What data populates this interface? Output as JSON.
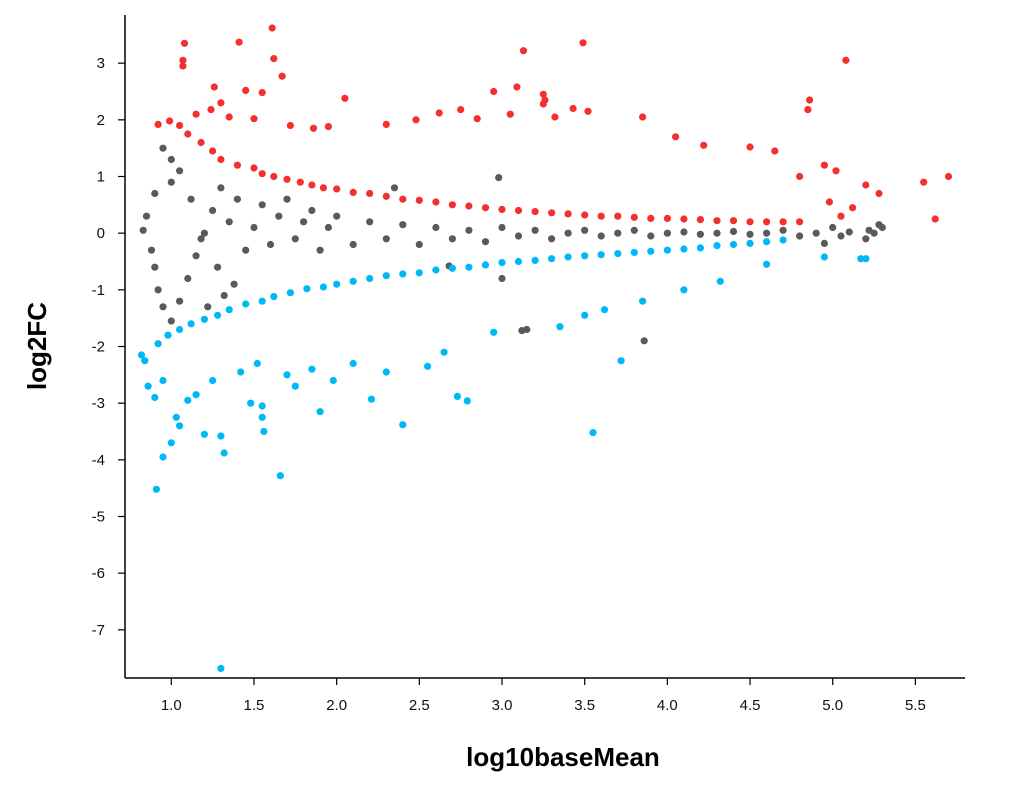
{
  "chart_data": {
    "type": "scatter",
    "title": "",
    "xlabel": "log10baseMean",
    "ylabel": "log2FC",
    "xlim": [
      0.72,
      5.8
    ],
    "ylim": [
      -7.85,
      3.85
    ],
    "x_ticks": [
      1.0,
      1.5,
      2.0,
      2.5,
      3.0,
      3.5,
      4.0,
      4.5,
      5.0,
      5.5
    ],
    "x_tick_labels": [
      "1.0",
      "1.5",
      "2.0",
      "2.5",
      "3.0",
      "3.5",
      "4.0",
      "4.5",
      "5.0",
      "5.5"
    ],
    "y_ticks": [
      3,
      2,
      1,
      0,
      -1,
      -2,
      -3,
      -4,
      -5,
      -6,
      -7
    ],
    "y_tick_labels": [
      "3",
      "2",
      "1",
      "0",
      "-1",
      "-2",
      "-3",
      "-4",
      "-5",
      "-6",
      "-7"
    ],
    "grid": false,
    "legend": "none",
    "colors": {
      "up": "#f23030",
      "down": "#00b8f5",
      "not_significant": "#5a5a5a"
    },
    "series": [
      {
        "group": "up",
        "points": [
          [
            1.08,
            3.35
          ],
          [
            1.07,
            3.05
          ],
          [
            1.07,
            2.95
          ],
          [
            1.41,
            3.37
          ],
          [
            1.61,
            3.62
          ],
          [
            1.62,
            3.08
          ],
          [
            1.67,
            2.77
          ],
          [
            3.13,
            3.22
          ],
          [
            3.49,
            3.36
          ],
          [
            5.08,
            3.05
          ],
          [
            1.26,
            2.58
          ],
          [
            1.3,
            2.3
          ],
          [
            1.45,
            2.52
          ],
          [
            1.55,
            2.48
          ],
          [
            2.05,
            2.38
          ],
          [
            2.95,
            2.5
          ],
          [
            3.09,
            2.58
          ],
          [
            3.25,
            2.28
          ],
          [
            3.25,
            2.45
          ],
          [
            3.43,
            2.2
          ],
          [
            3.26,
            2.35
          ],
          [
            4.86,
            2.35
          ],
          [
            4.85,
            2.18
          ],
          [
            0.92,
            1.92
          ],
          [
            0.99,
            1.98
          ],
          [
            1.15,
            2.1
          ],
          [
            1.24,
            2.18
          ],
          [
            1.35,
            2.05
          ],
          [
            1.5,
            2.02
          ],
          [
            1.72,
            1.9
          ],
          [
            1.86,
            1.85
          ],
          [
            1.95,
            1.88
          ],
          [
            2.3,
            1.92
          ],
          [
            2.48,
            2.0
          ],
          [
            2.62,
            2.12
          ],
          [
            2.75,
            2.18
          ],
          [
            2.85,
            2.02
          ],
          [
            3.05,
            2.1
          ],
          [
            3.32,
            2.05
          ],
          [
            3.52,
            2.15
          ],
          [
            3.85,
            2.05
          ],
          [
            4.05,
            1.7
          ],
          [
            4.22,
            1.55
          ],
          [
            4.5,
            1.52
          ],
          [
            4.65,
            1.45
          ],
          [
            4.95,
            1.2
          ],
          [
            5.02,
            1.1
          ],
          [
            4.8,
            1.0
          ],
          [
            5.2,
            0.85
          ],
          [
            5.28,
            0.7
          ],
          [
            5.55,
            0.9
          ],
          [
            5.7,
            1.0
          ],
          [
            5.62,
            0.25
          ],
          [
            5.05,
            0.3
          ],
          [
            4.98,
            0.55
          ],
          [
            5.12,
            0.45
          ],
          [
            1.05,
            1.9
          ],
          [
            1.1,
            1.75
          ],
          [
            1.18,
            1.6
          ],
          [
            1.25,
            1.45
          ],
          [
            1.3,
            1.3
          ],
          [
            1.4,
            1.2
          ],
          [
            1.5,
            1.15
          ],
          [
            1.55,
            1.05
          ],
          [
            1.62,
            1.0
          ],
          [
            1.7,
            0.95
          ],
          [
            1.78,
            0.9
          ],
          [
            1.85,
            0.85
          ],
          [
            1.92,
            0.8
          ],
          [
            2.0,
            0.78
          ],
          [
            2.1,
            0.72
          ],
          [
            2.2,
            0.7
          ],
          [
            2.3,
            0.65
          ],
          [
            2.4,
            0.6
          ],
          [
            2.5,
            0.58
          ],
          [
            2.6,
            0.55
          ],
          [
            2.7,
            0.5
          ],
          [
            2.8,
            0.48
          ],
          [
            2.9,
            0.45
          ],
          [
            3.0,
            0.42
          ],
          [
            3.1,
            0.4
          ],
          [
            3.2,
            0.38
          ],
          [
            3.3,
            0.36
          ],
          [
            3.4,
            0.34
          ],
          [
            3.5,
            0.32
          ],
          [
            3.6,
            0.3
          ],
          [
            3.7,
            0.3
          ],
          [
            3.8,
            0.28
          ],
          [
            3.9,
            0.26
          ],
          [
            4.0,
            0.26
          ],
          [
            4.1,
            0.25
          ],
          [
            4.2,
            0.24
          ],
          [
            4.3,
            0.22
          ],
          [
            4.4,
            0.22
          ],
          [
            4.5,
            0.2
          ],
          [
            4.6,
            0.2
          ],
          [
            4.7,
            0.2
          ],
          [
            4.8,
            0.2
          ]
        ]
      },
      {
        "group": "down",
        "points": [
          [
            1.3,
            -7.68
          ],
          [
            0.91,
            -4.52
          ],
          [
            0.95,
            -3.95
          ],
          [
            1.0,
            -3.7
          ],
          [
            1.66,
            -4.28
          ],
          [
            1.05,
            -3.4
          ],
          [
            1.2,
            -3.55
          ],
          [
            1.3,
            -3.58
          ],
          [
            1.32,
            -3.88
          ],
          [
            1.48,
            -3.0
          ],
          [
            1.55,
            -3.05
          ],
          [
            1.55,
            -3.25
          ],
          [
            1.56,
            -3.5
          ],
          [
            1.9,
            -3.15
          ],
          [
            2.21,
            -2.93
          ],
          [
            2.4,
            -3.38
          ],
          [
            2.73,
            -2.88
          ],
          [
            2.79,
            -2.96
          ],
          [
            3.55,
            -3.52
          ],
          [
            3.72,
            -2.25
          ],
          [
            0.82,
            -2.15
          ],
          [
            0.84,
            -2.25
          ],
          [
            0.86,
            -2.7
          ],
          [
            0.9,
            -2.9
          ],
          [
            0.95,
            -2.6
          ],
          [
            1.03,
            -3.25
          ],
          [
            1.1,
            -2.95
          ],
          [
            1.15,
            -2.85
          ],
          [
            1.25,
            -2.6
          ],
          [
            1.42,
            -2.45
          ],
          [
            1.52,
            -2.3
          ],
          [
            1.7,
            -2.5
          ],
          [
            1.75,
            -2.7
          ],
          [
            1.85,
            -2.4
          ],
          [
            1.98,
            -2.6
          ],
          [
            2.1,
            -2.3
          ],
          [
            2.3,
            -2.45
          ],
          [
            2.55,
            -2.35
          ],
          [
            2.65,
            -2.1
          ],
          [
            2.95,
            -1.75
          ],
          [
            3.35,
            -1.65
          ],
          [
            3.5,
            -1.45
          ],
          [
            3.62,
            -1.35
          ],
          [
            3.85,
            -1.2
          ],
          [
            4.1,
            -1.0
          ],
          [
            4.32,
            -0.85
          ],
          [
            4.6,
            -0.55
          ],
          [
            4.95,
            -0.42
          ],
          [
            5.17,
            -0.45
          ],
          [
            5.2,
            -0.45
          ],
          [
            0.92,
            -1.95
          ],
          [
            0.98,
            -1.8
          ],
          [
            1.05,
            -1.7
          ],
          [
            1.12,
            -1.6
          ],
          [
            1.2,
            -1.52
          ],
          [
            1.28,
            -1.45
          ],
          [
            1.35,
            -1.35
          ],
          [
            1.45,
            -1.25
          ],
          [
            1.55,
            -1.2
          ],
          [
            1.62,
            -1.12
          ],
          [
            1.72,
            -1.05
          ],
          [
            1.82,
            -0.98
          ],
          [
            1.92,
            -0.95
          ],
          [
            2.0,
            -0.9
          ],
          [
            2.1,
            -0.85
          ],
          [
            2.2,
            -0.8
          ],
          [
            2.3,
            -0.75
          ],
          [
            2.4,
            -0.72
          ],
          [
            2.5,
            -0.7
          ],
          [
            2.6,
            -0.65
          ],
          [
            2.7,
            -0.62
          ],
          [
            2.8,
            -0.6
          ],
          [
            2.9,
            -0.56
          ],
          [
            3.0,
            -0.52
          ],
          [
            3.1,
            -0.5
          ],
          [
            3.2,
            -0.48
          ],
          [
            3.3,
            -0.45
          ],
          [
            3.4,
            -0.42
          ],
          [
            3.5,
            -0.4
          ],
          [
            3.6,
            -0.38
          ],
          [
            3.7,
            -0.36
          ],
          [
            3.8,
            -0.34
          ],
          [
            3.9,
            -0.32
          ],
          [
            4.0,
            -0.3
          ],
          [
            4.1,
            -0.28
          ],
          [
            4.2,
            -0.26
          ],
          [
            4.3,
            -0.22
          ],
          [
            4.4,
            -0.2
          ],
          [
            4.5,
            -0.18
          ],
          [
            4.6,
            -0.15
          ],
          [
            4.7,
            -0.12
          ]
        ]
      },
      {
        "group": "not_significant",
        "points": [
          [
            0.95,
            1.5
          ],
          [
            1.0,
            1.3
          ],
          [
            1.05,
            1.1
          ],
          [
            1.0,
            0.9
          ],
          [
            0.9,
            0.7
          ],
          [
            0.85,
            0.3
          ],
          [
            0.83,
            0.05
          ],
          [
            0.88,
            -0.3
          ],
          [
            0.9,
            -0.6
          ],
          [
            0.92,
            -1.0
          ],
          [
            0.95,
            -1.3
          ],
          [
            1.0,
            -1.55
          ],
          [
            1.05,
            -1.2
          ],
          [
            1.1,
            -0.8
          ],
          [
            1.15,
            -0.4
          ],
          [
            1.2,
            0.0
          ],
          [
            1.25,
            0.4
          ],
          [
            1.3,
            0.8
          ],
          [
            1.12,
            0.6
          ],
          [
            1.18,
            -0.1
          ],
          [
            1.28,
            -0.6
          ],
          [
            1.35,
            0.2
          ],
          [
            1.4,
            0.6
          ],
          [
            1.45,
            -0.3
          ],
          [
            1.5,
            0.1
          ],
          [
            1.55,
            0.5
          ],
          [
            1.6,
            -0.2
          ],
          [
            1.65,
            0.3
          ],
          [
            1.7,
            0.6
          ],
          [
            1.75,
            -0.1
          ],
          [
            1.8,
            0.2
          ],
          [
            1.85,
            0.4
          ],
          [
            1.9,
            -0.3
          ],
          [
            1.95,
            0.1
          ],
          [
            2.0,
            0.3
          ],
          [
            2.1,
            -0.2
          ],
          [
            2.2,
            0.2
          ],
          [
            2.3,
            -0.1
          ],
          [
            2.4,
            0.15
          ],
          [
            2.5,
            -0.2
          ],
          [
            2.6,
            0.1
          ],
          [
            2.7,
            -0.1
          ],
          [
            2.8,
            0.05
          ],
          [
            2.9,
            -0.15
          ],
          [
            3.0,
            0.1
          ],
          [
            3.1,
            -0.05
          ],
          [
            3.2,
            0.05
          ],
          [
            3.3,
            -0.1
          ],
          [
            3.4,
            0.0
          ],
          [
            3.5,
            0.05
          ],
          [
            3.6,
            -0.05
          ],
          [
            3.7,
            0.0
          ],
          [
            3.8,
            0.05
          ],
          [
            3.9,
            -0.05
          ],
          [
            4.0,
            0.0
          ],
          [
            4.1,
            0.02
          ],
          [
            4.2,
            -0.02
          ],
          [
            4.3,
            0.0
          ],
          [
            4.4,
            0.03
          ],
          [
            4.5,
            -0.02
          ],
          [
            4.6,
            0.0
          ],
          [
            4.7,
            0.05
          ],
          [
            4.8,
            -0.05
          ],
          [
            4.9,
            0.0
          ],
          [
            5.0,
            0.1
          ],
          [
            5.05,
            -0.05
          ],
          [
            5.1,
            0.02
          ],
          [
            5.2,
            -0.1
          ],
          [
            5.25,
            0.0
          ],
          [
            5.28,
            0.15
          ],
          [
            5.3,
            0.1
          ],
          [
            5.22,
            0.05
          ],
          [
            4.95,
            -0.18
          ],
          [
            2.98,
            0.98
          ],
          [
            3.12,
            -1.72
          ],
          [
            3.15,
            -1.7
          ],
          [
            3.86,
            -1.9
          ],
          [
            2.68,
            -0.58
          ],
          [
            3.0,
            -0.8
          ],
          [
            2.35,
            0.8
          ],
          [
            1.22,
            -1.3
          ],
          [
            1.32,
            -1.1
          ],
          [
            1.38,
            -0.9
          ]
        ]
      }
    ]
  }
}
